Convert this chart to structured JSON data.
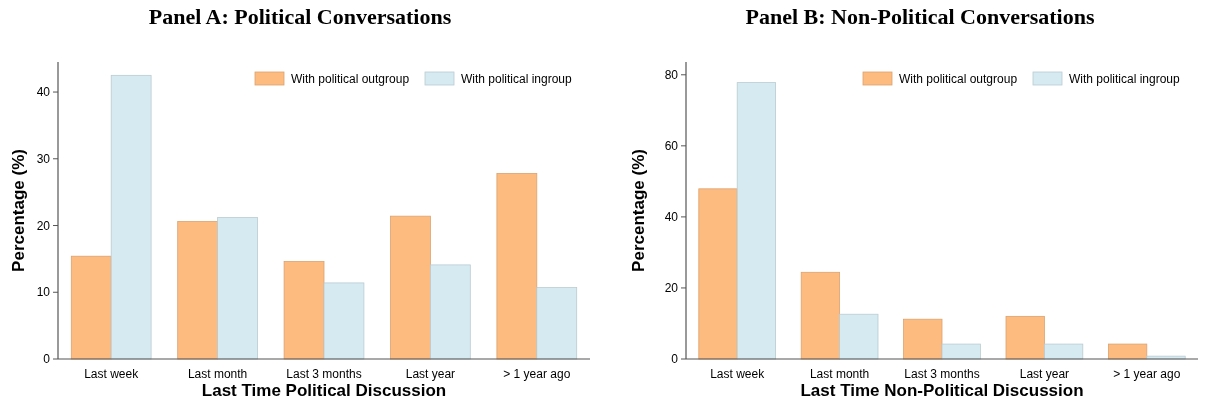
{
  "chart_data": [
    {
      "type": "bar",
      "title": "Panel A: Political Conversations",
      "xlabel": "Last Time Political Discussion",
      "ylabel": "Percentage (%)",
      "categories": [
        "Last week",
        "Last month",
        "Last 3 months",
        "Last year",
        "> 1 year ago"
      ],
      "ylim": [
        0,
        44.5
      ],
      "yticks": [
        0,
        10,
        20,
        30,
        40
      ],
      "legend": "top right",
      "grid": false,
      "series": [
        {
          "name": "With political outgroup",
          "color": "#fdbb80",
          "values": [
            15.4,
            20.6,
            14.6,
            21.4,
            27.8
          ]
        },
        {
          "name": "With political ingroup",
          "color": "#d6eaf1",
          "values": [
            42.5,
            21.2,
            11.4,
            14.1,
            10.7
          ]
        }
      ]
    },
    {
      "type": "bar",
      "title": "Panel B: Non-Political Conversations",
      "xlabel": "Last Time Non-Political Discussion",
      "ylabel": "Percentage (%)",
      "categories": [
        "Last week",
        "Last month",
        "Last 3 months",
        "Last year",
        "> 1 year ago"
      ],
      "ylim": [
        0,
        83.6
      ],
      "yticks": [
        0,
        20,
        40,
        60,
        80
      ],
      "legend": "top right",
      "grid": false,
      "series": [
        {
          "name": "With political outgroup",
          "color": "#fdbb80",
          "values": [
            47.9,
            24.4,
            11.2,
            12.0,
            4.2
          ]
        },
        {
          "name": "With political ingroup",
          "color": "#d6eaf1",
          "values": [
            77.8,
            12.6,
            4.2,
            4.2,
            0.8
          ]
        }
      ]
    }
  ]
}
